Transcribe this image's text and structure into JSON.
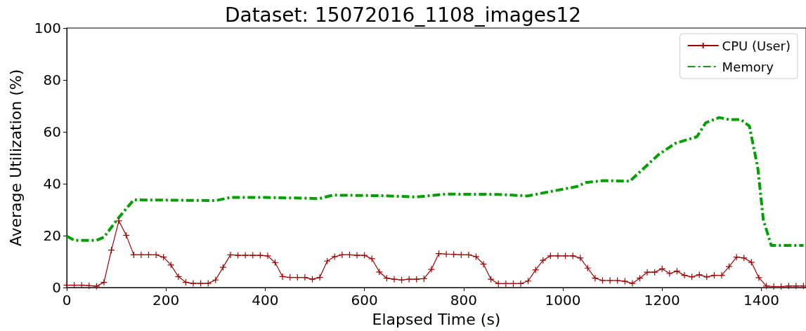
{
  "chart_data": {
    "type": "line",
    "title": "Dataset: 15072016_1108_images12",
    "xlabel": "Elapsed Time (s)",
    "ylabel": "Average Utilization (%)",
    "xlim": [
      0,
      1490
    ],
    "xticks": [
      0,
      200,
      400,
      600,
      800,
      1000,
      1200,
      1400
    ],
    "ylim": [
      0,
      100
    ],
    "yticks": [
      0,
      20,
      40,
      60,
      80,
      100
    ],
    "grid": false,
    "legend": "top right",
    "series": [
      {
        "name": "CPU (User)",
        "color": "#a00000",
        "marker": "cross",
        "line_style": "solid",
        "x": [
          0,
          15,
          30,
          45,
          60,
          75,
          90,
          105,
          120,
          135,
          150,
          165,
          180,
          195,
          210,
          225,
          240,
          255,
          270,
          285,
          300,
          315,
          330,
          345,
          360,
          375,
          390,
          405,
          420,
          435,
          450,
          465,
          480,
          495,
          510,
          525,
          540,
          555,
          570,
          585,
          600,
          615,
          630,
          645,
          660,
          675,
          690,
          705,
          720,
          735,
          750,
          765,
          780,
          795,
          810,
          825,
          840,
          855,
          870,
          885,
          900,
          915,
          930,
          945,
          960,
          975,
          990,
          1005,
          1020,
          1035,
          1050,
          1065,
          1080,
          1095,
          1110,
          1125,
          1140,
          1155,
          1170,
          1185,
          1200,
          1215,
          1230,
          1245,
          1260,
          1275,
          1290,
          1305,
          1320,
          1335,
          1350,
          1365,
          1380,
          1395,
          1410,
          1425,
          1440,
          1455,
          1470,
          1485
        ],
        "values": [
          0.9,
          0.9,
          0.9,
          0.7,
          0.5,
          2.0,
          14.4,
          25.7,
          20.1,
          12.6,
          12.6,
          12.6,
          12.6,
          11.7,
          8.7,
          4.2,
          2.0,
          1.6,
          1.6,
          1.6,
          2.9,
          7.8,
          12.6,
          12.4,
          12.4,
          12.4,
          12.4,
          12.2,
          9.6,
          4.2,
          3.9,
          3.9,
          3.9,
          3.2,
          3.9,
          10.2,
          11.9,
          12.6,
          12.6,
          12.4,
          12.4,
          11.1,
          6.0,
          3.6,
          3.2,
          2.9,
          3.2,
          3.2,
          3.4,
          7.0,
          13.1,
          12.9,
          12.8,
          12.6,
          12.6,
          11.9,
          9.0,
          3.2,
          1.5,
          1.5,
          1.5,
          1.5,
          2.5,
          6.8,
          10.5,
          12.2,
          12.2,
          12.2,
          12.2,
          11.4,
          7.5,
          3.6,
          2.7,
          2.7,
          2.7,
          2.4,
          1.6,
          3.6,
          5.9,
          5.9,
          7.2,
          5.4,
          6.3,
          4.7,
          4.1,
          4.9,
          4.1,
          4.7,
          4.7,
          8.1,
          11.7,
          11.4,
          9.7,
          3.8,
          0.6,
          0.4,
          0.4,
          0.6,
          0.6,
          0.6
        ]
      },
      {
        "name": "Memory",
        "color": "#00a000",
        "marker": "none",
        "line_style": "dashdot",
        "x": [
          0,
          15,
          60,
          75,
          105,
          135,
          300,
          330,
          400,
          490,
          508,
          536,
          631,
          706,
          763,
          868,
          929,
          986,
          1028,
          1047,
          1081,
          1135,
          1194,
          1227,
          1270,
          1288,
          1315,
          1336,
          1359,
          1376,
          1393,
          1404,
          1420,
          1485
        ],
        "values": [
          19.8,
          18.2,
          18.2,
          19.4,
          27.0,
          33.8,
          33.5,
          34.7,
          34.7,
          34.4,
          34.2,
          35.6,
          35.4,
          34.9,
          36.0,
          35.9,
          35.3,
          37.4,
          38.9,
          40.5,
          41.2,
          41.0,
          51.4,
          55.6,
          58.1,
          63.5,
          65.5,
          64.7,
          64.7,
          62.2,
          45.9,
          26.1,
          16.2,
          16.2
        ]
      }
    ]
  }
}
